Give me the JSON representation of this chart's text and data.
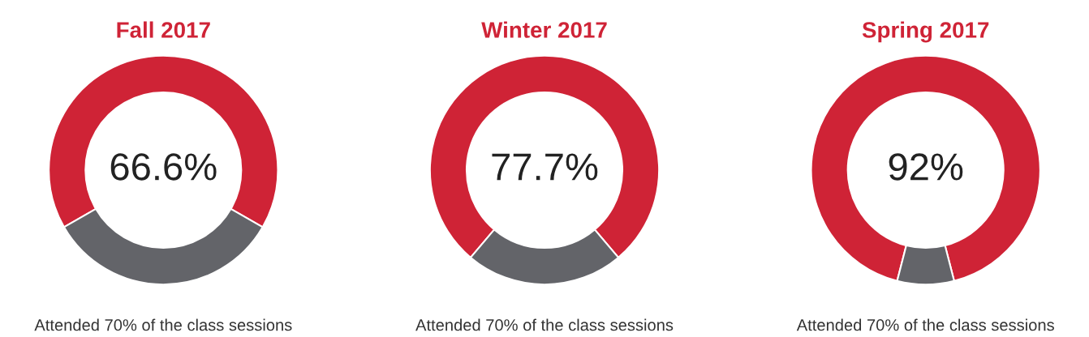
{
  "chart_data": [
    {
      "type": "donut",
      "title": "Fall 2017",
      "categories": [
        null,
        null
      ],
      "values": [
        66.6,
        33.4
      ],
      "colors": [
        "#cf2336",
        "#636469"
      ],
      "annotations": [
        "66.6%",
        "Attended 70% of the class sessions"
      ]
    },
    {
      "type": "donut",
      "title": "Winter 2017",
      "categories": [
        null,
        null
      ],
      "values": [
        77.7,
        22.3
      ],
      "colors": [
        "#cf2336",
        "#636469"
      ],
      "annotations": [
        "77.7%",
        "Attended 70% of the class sessions"
      ]
    },
    {
      "type": "donut",
      "title": "Spring 2017",
      "categories": [
        null,
        null
      ],
      "values": [
        92,
        8
      ],
      "colors": [
        "#cf2336",
        "#636469"
      ],
      "annotations": [
        "92%",
        "Attended 70% of the class sessions"
      ]
    }
  ]
}
